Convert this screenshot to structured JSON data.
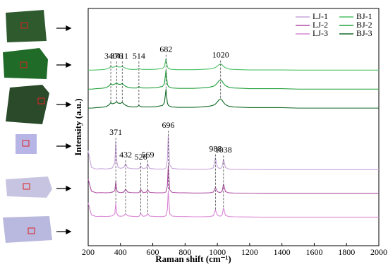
{
  "chart_data": {
    "type": "line",
    "xlabel": "Raman shift (cm⁻¹)",
    "ylabel": "Intensity (a.u.)",
    "xlim": [
      200,
      2000
    ],
    "xticks": [
      200,
      400,
      600,
      800,
      1000,
      1200,
      1400,
      1600,
      1800,
      2000
    ],
    "ylim": [
      0,
      100
    ],
    "legend": "upper right",
    "x": [
      200,
      220,
      250,
      280,
      310,
      330,
      340,
      350,
      365,
      371,
      376,
      385,
      400,
      411,
      420,
      432,
      445,
      470,
      500,
      514,
      526,
      540,
      560,
      569,
      580,
      620,
      660,
      672,
      682,
      690,
      696,
      705,
      720,
      760,
      800,
      850,
      900,
      950,
      975,
      988,
      1000,
      1010,
      1020,
      1030,
      1038,
      1050,
      1070,
      1100,
      1200,
      1300,
      1400,
      1500,
      1600,
      1700,
      1800,
      1900,
      2000
    ],
    "series": [
      {
        "name": "LJ-1",
        "color": "#c9a6dc",
        "values": [
          40,
          33,
          32.3,
          32.5,
          32.3,
          32.5,
          32.6,
          32.8,
          35,
          44,
          36,
          33,
          32.6,
          32.8,
          33,
          34.5,
          32.8,
          32.5,
          32.4,
          32.5,
          33.5,
          32.5,
          32.8,
          34.5,
          32.6,
          32.3,
          32.3,
          32.4,
          32.8,
          36,
          47,
          34,
          32.6,
          32.3,
          32.3,
          32.2,
          32.2,
          32.3,
          32.8,
          37,
          33.2,
          32.6,
          32.6,
          33.5,
          36.5,
          33,
          32.3,
          32.2,
          32.1,
          32,
          32,
          32,
          32,
          32,
          32,
          32,
          32
        ]
      },
      {
        "name": "LJ-2",
        "color": "#b04fa6",
        "values": [
          28,
          23,
          22.3,
          22.4,
          22.3,
          22.4,
          22.5,
          22.6,
          23.2,
          27,
          23.5,
          22.6,
          22.4,
          22.5,
          22.6,
          23.8,
          22.6,
          22.4,
          22.3,
          22.4,
          23.6,
          22.4,
          22.6,
          23.5,
          22.5,
          22.3,
          22.3,
          22.4,
          22.7,
          25,
          34,
          23.5,
          22.5,
          22.3,
          22.3,
          22.2,
          22.2,
          22.3,
          22.6,
          24.5,
          22.8,
          22.5,
          22.5,
          23,
          26,
          22.8,
          22.3,
          22.2,
          22.1,
          22,
          22,
          22,
          22,
          22,
          22,
          22,
          22
        ]
      },
      {
        "name": "LJ-3",
        "color": "#d985d4",
        "values": [
          18,
          13,
          12.3,
          12.4,
          12.3,
          12.4,
          12.5,
          12.6,
          13.5,
          18,
          13.8,
          12.6,
          12.4,
          12.5,
          12.6,
          13.5,
          12.6,
          12.4,
          12.3,
          12.4,
          13.5,
          12.4,
          12.6,
          13.5,
          12.5,
          12.3,
          12.3,
          12.4,
          12.7,
          15,
          23,
          13.5,
          12.5,
          12.3,
          12.3,
          12.2,
          12.2,
          12.3,
          12.6,
          15,
          12.9,
          12.5,
          12.5,
          13,
          16,
          12.8,
          12.3,
          12.2,
          12.1,
          12,
          12,
          12,
          12,
          12,
          12,
          12,
          12
        ]
      },
      {
        "name": "BJ-1",
        "color": "#4cc267",
        "values": [
          74,
          74,
          74.1,
          74.2,
          74.4,
          74.9,
          75.5,
          75.2,
          75.4,
          75.6,
          75.8,
          75.4,
          75.3,
          75.6,
          75.2,
          74.8,
          74.5,
          74.3,
          74.3,
          74.7,
          74.4,
          74.3,
          74.3,
          74.3,
          74.3,
          74.4,
          74.7,
          75.5,
          79,
          75.5,
          74.8,
          74.5,
          74.3,
          74.2,
          74.2,
          74.2,
          74.3,
          74.5,
          74.8,
          75.1,
          75.7,
          76.3,
          76.6,
          76.2,
          75.6,
          75,
          74.5,
          74.3,
          74.1,
          74.1,
          74.1,
          74,
          74,
          74,
          74,
          74,
          74
        ]
      },
      {
        "name": "BJ-2",
        "color": "#22a03c",
        "values": [
          66,
          66,
          66.2,
          66.3,
          66.6,
          67.4,
          68.3,
          67.8,
          68.1,
          68.4,
          68.7,
          68.1,
          68,
          68.4,
          67.8,
          67.2,
          66.8,
          66.5,
          66.5,
          67.1,
          66.6,
          66.5,
          66.5,
          66.5,
          66.5,
          66.6,
          67.1,
          68.3,
          74,
          68.3,
          67.2,
          66.8,
          66.5,
          66.3,
          66.3,
          66.3,
          66.5,
          66.8,
          67.2,
          67.7,
          68.6,
          69.5,
          69.9,
          69.3,
          68.4,
          67.5,
          66.8,
          66.5,
          66.2,
          66.2,
          66.2,
          66,
          66,
          66,
          66,
          66,
          66
        ]
      },
      {
        "name": "BJ-3",
        "color": "#146b28",
        "values": [
          58,
          58,
          58.2,
          58.3,
          58.6,
          59.4,
          60.3,
          59.8,
          60.1,
          60.4,
          60.7,
          60.1,
          60,
          60.4,
          59.8,
          59.2,
          58.8,
          58.5,
          58.5,
          59.1,
          58.6,
          58.5,
          58.5,
          58.5,
          58.5,
          58.6,
          59.1,
          60.3,
          66,
          60.3,
          59.2,
          58.8,
          58.5,
          58.3,
          58.3,
          58.3,
          58.5,
          58.8,
          59.2,
          59.7,
          60.6,
          61.5,
          61.9,
          61.3,
          60.4,
          59.5,
          58.8,
          58.5,
          58.2,
          58.2,
          58.2,
          58,
          58,
          58,
          58,
          58,
          58
        ]
      }
    ],
    "peaks_bj": [
      340,
      376,
      411,
      514,
      682,
      1020
    ],
    "peaks_lj": [
      371,
      432,
      526,
      569,
      696,
      988,
      1038
    ]
  }
}
